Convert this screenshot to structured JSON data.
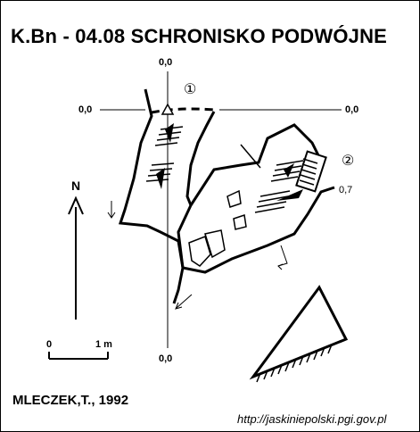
{
  "title": "K.Bn - 04.08  SCHRONISKO PODWÓJNE",
  "survey_levels": {
    "top": "0,0",
    "left": "0,0",
    "right": "0,0",
    "bottom": "0,0",
    "entrance_2_offset": "0,7"
  },
  "entrances": {
    "first": "①",
    "second": "②"
  },
  "north_label": "N",
  "scale": {
    "start": "0",
    "end": "1 m"
  },
  "author": "MLECZEK,T., 1992",
  "source_url": "http://jaskiniepolski.pgi.gov.pl",
  "icons": [
    "north-arrow-icon",
    "survey-datum-triangle-icon",
    "scale-bar-icon",
    "slope-arrow-icon",
    "rock-block-icon"
  ]
}
